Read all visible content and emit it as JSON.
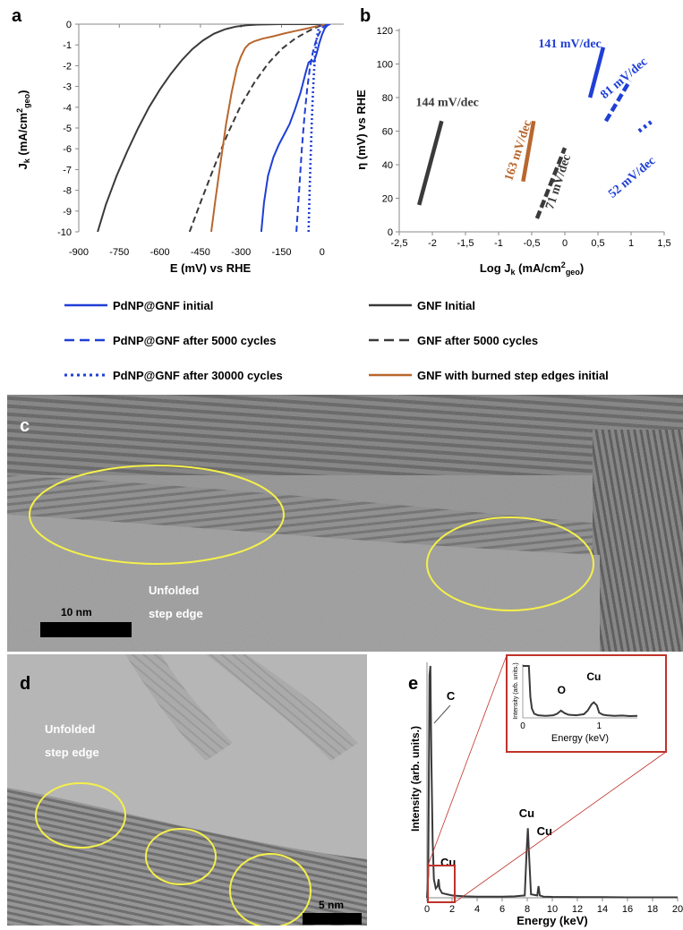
{
  "panel_letters": {
    "a": "a",
    "b": "b",
    "c": "c",
    "d": "d",
    "e": "e"
  },
  "colors": {
    "blue": "#1f3fd6",
    "black": "#3a3a3a",
    "brown": "#b8672e",
    "yellow": "#f4f04a",
    "red": "#c0332a"
  },
  "legend": [
    {
      "label": "PdNP@GNF initial",
      "color": "#1f3fd6",
      "dash": "solid"
    },
    {
      "label": "GNF Initial",
      "color": "#3a3a3a",
      "dash": "solid"
    },
    {
      "label": "PdNP@GNF after 5000 cycles",
      "color": "#1f3fd6",
      "dash": "dashed"
    },
    {
      "label": "GNF after 5000 cycles",
      "color": "#3a3a3a",
      "dash": "dashed"
    },
    {
      "label": "PdNP@GNF after 30000 cycles",
      "color": "#1f3fd6",
      "dash": "dotted"
    },
    {
      "label": "GNF with burned step edges initial",
      "color": "#b8672e",
      "dash": "solid"
    }
  ],
  "chart_data": [
    {
      "panel": "a",
      "type": "line",
      "xlabel": "E (mV) vs RHE",
      "ylabel_main": "J",
      "ylabel_sub": "k",
      "ylabel_rest": " (mA/cm",
      "ylabel_sup": "2",
      "ylabel_sub2": "geo",
      "ylabel_end": ")",
      "xlim": [
        -900,
        80
      ],
      "ylim": [
        -10,
        0
      ],
      "xticks": [
        -900,
        -750,
        -600,
        -450,
        -300,
        -150,
        0
      ],
      "xtick_labels": [
        "-900",
        "-750",
        "-600",
        "-450",
        "-300",
        "-150",
        "0"
      ],
      "yticks": [
        0,
        -1,
        -2,
        -3,
        -4,
        -5,
        -6,
        -7,
        -8,
        -9,
        -10
      ],
      "ytick_labels": [
        "0",
        "-1",
        "-2",
        "-3",
        "-4",
        "-5",
        "-6",
        "-7",
        "-8",
        "-9",
        "-10"
      ],
      "series": [
        {
          "legend_index": 1,
          "color": "#3a3a3a",
          "dash": "solid",
          "x": [
            -830,
            -800,
            -760,
            -720,
            -680,
            -640,
            -600,
            -560,
            -520,
            -480,
            -440,
            -400,
            -360,
            -320,
            -280,
            -240,
            -200,
            -160,
            -120,
            -80,
            -40,
            0
          ],
          "y": [
            -10,
            -8.7,
            -7.3,
            -6.1,
            -5.0,
            -4.0,
            -3.15,
            -2.4,
            -1.75,
            -1.2,
            -0.78,
            -0.46,
            -0.25,
            -0.12,
            -0.05,
            -0.02,
            -0.01,
            0,
            0,
            0,
            0,
            0
          ]
        },
        {
          "legend_index": 3,
          "color": "#3a3a3a",
          "dash": "dashed",
          "x": [
            -490,
            -450,
            -400,
            -350,
            -300,
            -250,
            -200,
            -150,
            -100,
            -60,
            -30,
            0,
            30
          ],
          "y": [
            -10,
            -8.6,
            -6.9,
            -5.3,
            -3.9,
            -2.8,
            -1.9,
            -1.2,
            -0.7,
            -0.4,
            -0.2,
            -0.05,
            0
          ]
        },
        {
          "legend_index": 5,
          "color": "#b8672e",
          "dash": "solid",
          "x": [
            -410,
            -395,
            -375,
            -355,
            -335,
            -315,
            -300,
            -285,
            -270,
            -250,
            -220,
            -180,
            -140,
            -100,
            -60,
            -20,
            10,
            30
          ],
          "y": [
            -10,
            -8.5,
            -6.6,
            -4.8,
            -3.3,
            -2.1,
            -1.55,
            -1.15,
            -0.95,
            -0.82,
            -0.7,
            -0.58,
            -0.45,
            -0.33,
            -0.22,
            -0.1,
            -0.03,
            0
          ]
        },
        {
          "legend_index": 0,
          "color": "#1f3fd6",
          "dash": "solid",
          "x": [
            -225,
            -215,
            -200,
            -180,
            -160,
            -140,
            -120,
            -100,
            -80,
            -60,
            -50,
            -40,
            -30,
            -20,
            -10,
            0,
            10,
            20,
            30
          ],
          "y": [
            -10,
            -8.6,
            -7.3,
            -6.4,
            -5.8,
            -5.3,
            -4.8,
            -4.1,
            -3.3,
            -2.3,
            -1.85,
            -1.75,
            -1.8,
            -1.4,
            -0.9,
            -0.5,
            -0.2,
            -0.05,
            0
          ]
        },
        {
          "legend_index": 2,
          "color": "#1f3fd6",
          "dash": "dashed",
          "x": [
            -95,
            -85,
            -75,
            -65,
            -55,
            -45,
            -35,
            -25,
            -15,
            -5,
            5,
            15,
            25
          ],
          "y": [
            -10,
            -8.0,
            -6.0,
            -4.4,
            -3.1,
            -2.1,
            -1.4,
            -0.9,
            -0.55,
            -0.3,
            -0.13,
            -0.04,
            0
          ]
        },
        {
          "legend_index": 4,
          "color": "#1f3fd6",
          "dash": "dotted",
          "x": [
            -50,
            -46,
            -42,
            -38,
            -34,
            -30,
            -26,
            -22,
            -18,
            -14,
            -10,
            -6
          ],
          "y": [
            -10,
            -8.0,
            -6.2,
            -4.6,
            -3.3,
            -2.3,
            -1.5,
            -0.95,
            -0.55,
            -0.28,
            -0.1,
            0
          ]
        }
      ]
    },
    {
      "panel": "b",
      "type": "scatter",
      "xlabel_pre": "Log J",
      "xlabel_sub": "k",
      "xlabel_rest": " (mA/cm",
      "xlabel_sup": "2",
      "xlabel_sub2": "geo",
      "xlabel_end": ")",
      "ylabel": "η (mV) vs RHE",
      "xlim": [
        -2.5,
        1.5
      ],
      "ylim": [
        0,
        120
      ],
      "xticks": [
        -2.5,
        -2,
        -1.5,
        -1,
        -0.5,
        0,
        0.5,
        1,
        1.5
      ],
      "xtick_labels": [
        "-2,5",
        "-2",
        "-1,5",
        "-1",
        "-0,5",
        "0",
        "0,5",
        "1",
        "1,5"
      ],
      "yticks": [
        0,
        20,
        40,
        60,
        80,
        100,
        120
      ],
      "ytick_labels": [
        "0",
        "20",
        "40",
        "60",
        "80",
        "100",
        "120"
      ],
      "series": [
        {
          "color": "#3a3a3a",
          "dash": "solid",
          "x": [
            -2.2,
            -1.86
          ],
          "y": [
            16,
            66
          ]
        },
        {
          "color": "#b8672e",
          "dash": "solid",
          "x": [
            -0.63,
            -0.47
          ],
          "y": [
            30,
            66
          ]
        },
        {
          "color": "#3a3a3a",
          "dash": "dashed",
          "x": [
            -0.42,
            0
          ],
          "y": [
            8,
            50
          ]
        },
        {
          "color": "#1f3fd6",
          "dash": "solid",
          "x": [
            0.38,
            0.58
          ],
          "y": [
            80,
            110
          ]
        },
        {
          "color": "#1f3fd6",
          "dash": "dashed",
          "x": [
            0.62,
            0.98
          ],
          "y": [
            66,
            90
          ]
        },
        {
          "color": "#1f3fd6",
          "dash": "dotted",
          "x": [
            1.12,
            1.32
          ],
          "y": [
            60,
            66
          ]
        }
      ],
      "annotations": [
        {
          "text": "144 mV/dec",
          "color": "#3a3a3a",
          "x": -2.25,
          "y": 75,
          "rotate": 0
        },
        {
          "text": "163 mV/dec",
          "color": "#b8672e",
          "x": -0.8,
          "y": 30,
          "rotate": -72
        },
        {
          "text": "71 mV/dec",
          "color": "#3a3a3a",
          "x": -0.18,
          "y": 13,
          "rotate": -72
        },
        {
          "text": "141 mV/dec",
          "color": "#1f3fd6",
          "x": -0.4,
          "y": 110,
          "rotate": 0
        },
        {
          "text": "81 mV/dec",
          "color": "#1f3fd6",
          "x": 0.6,
          "y": 79,
          "rotate": -40
        },
        {
          "text": "52 mV/dec",
          "color": "#1f3fd6",
          "x": 0.72,
          "y": 20,
          "rotate": -40
        }
      ]
    },
    {
      "panel": "e",
      "type": "line",
      "xlabel": "Energy (keV)",
      "ylabel": "Intensity (arb. units.)",
      "xlim": [
        0,
        20
      ],
      "ylim": [
        0,
        100
      ],
      "xticks": [
        0,
        2,
        4,
        6,
        8,
        10,
        12,
        14,
        16,
        18,
        20
      ],
      "xtick_labels": [
        "0",
        "2",
        "4",
        "6",
        "8",
        "10",
        "12",
        "14",
        "16",
        "18",
        "20"
      ],
      "peak_labels": [
        {
          "text": "C",
          "x": 0.28
        },
        {
          "text": "Cu",
          "x": 0.93
        },
        {
          "text": "Cu",
          "x": 8.05
        },
        {
          "text": "Cu",
          "x": 8.9
        }
      ],
      "series": [
        {
          "color": "#3a3a3a",
          "x": [
            0,
            0.1,
            0.2,
            0.27,
            0.3,
            0.35,
            0.45,
            0.55,
            0.7,
            0.85,
            0.93,
            1.0,
            1.2,
            1.6,
            2,
            3,
            4,
            5,
            6,
            7,
            7.8,
            7.95,
            8.05,
            8.15,
            8.3,
            8.8,
            8.9,
            9.0,
            9.3,
            10,
            12,
            14,
            16,
            18,
            20
          ],
          "y": [
            0,
            10,
            96,
            100,
            84,
            60,
            25,
            8,
            4,
            5,
            8,
            4,
            2,
            1.5,
            1,
            0.6,
            0.5,
            0.5,
            0.5,
            0.6,
            1,
            20,
            30,
            18,
            1.5,
            1,
            5,
            1,
            0.5,
            0.4,
            0.3,
            0.3,
            0.2,
            0.2,
            0.2
          ]
        }
      ],
      "inset": {
        "xlabel": "Energy (keV)",
        "ylabel": "Intensity (arb. units.)",
        "xlim": [
          0,
          1.5
        ],
        "xticks": [
          0,
          1
        ],
        "xtick_labels": [
          "0",
          "1"
        ],
        "peak_labels": [
          {
            "text": "O",
            "x": 0.5
          },
          {
            "text": "Cu",
            "x": 0.93
          }
        ],
        "x": [
          0.0,
          0.05,
          0.08,
          0.1,
          0.12,
          0.15,
          0.2,
          0.3,
          0.4,
          0.45,
          0.5,
          0.55,
          0.6,
          0.7,
          0.8,
          0.85,
          0.9,
          0.93,
          0.97,
          1.0,
          1.05,
          1.1,
          1.2,
          1.3,
          1.4,
          1.5
        ],
        "y": [
          100,
          100,
          100,
          40,
          18,
          8,
          5,
          4,
          5,
          8,
          14,
          9,
          6,
          5,
          7,
          14,
          26,
          30,
          24,
          10,
          6,
          5,
          4,
          4.5,
          3.5,
          4
        ]
      }
    }
  ],
  "images": {
    "c": {
      "scale_label": "10 nm",
      "caption_line1": "Unfolded",
      "caption_line2": "step edge"
    },
    "d": {
      "scale_label": "5 nm",
      "caption_line1": "Unfolded",
      "caption_line2": "step edge"
    }
  }
}
